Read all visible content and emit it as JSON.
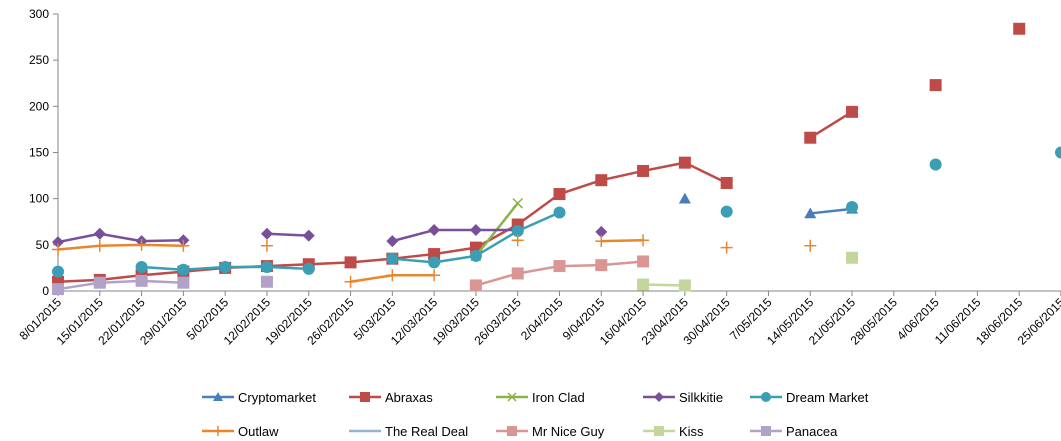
{
  "chart_data": {
    "type": "line",
    "ylim": [
      0,
      300
    ],
    "yticks": [
      0,
      50,
      100,
      150,
      200,
      250,
      300
    ],
    "grid": false,
    "legend_position": "bottom",
    "categories": [
      "8/01/2015",
      "15/01/2015",
      "22/01/2015",
      "29/01/2015",
      "5/02/2015",
      "12/02/2015",
      "19/02/2015",
      "26/02/2015",
      "5/03/2015",
      "12/03/2015",
      "19/03/2015",
      "26/03/2015",
      "2/04/2015",
      "9/04/2015",
      "16/04/2015",
      "23/04/2015",
      "30/04/2015",
      "7/05/2015",
      "14/05/2015",
      "21/05/2015",
      "28/05/2015",
      "4/06/2015",
      "11/06/2015",
      "18/06/2015",
      "25/06/2015"
    ],
    "series": [
      {
        "name": "Cryptomarket",
        "color": "#4a7ebb",
        "marker": "triangle",
        "values": [
          null,
          null,
          null,
          null,
          null,
          null,
          null,
          null,
          null,
          null,
          null,
          null,
          null,
          null,
          null,
          100,
          null,
          null,
          84,
          89,
          null,
          null,
          null,
          null,
          null
        ]
      },
      {
        "name": "Abraxas",
        "color": "#be4b48",
        "marker": "square",
        "values": [
          10,
          12,
          17,
          21,
          25,
          27,
          29,
          31,
          35,
          40,
          47,
          72,
          105,
          120,
          130,
          139,
          117,
          null,
          166,
          194,
          null,
          223,
          null,
          284,
          null
        ]
      },
      {
        "name": "Iron Clad",
        "color": "#8cb24a",
        "marker": "x",
        "values": [
          null,
          null,
          null,
          null,
          null,
          null,
          null,
          null,
          null,
          null,
          38,
          95,
          null,
          null,
          null,
          null,
          null,
          null,
          null,
          null,
          null,
          null,
          null,
          null,
          null
        ]
      },
      {
        "name": "Silkkitie",
        "color": "#7a4f9a",
        "marker": "diamond",
        "values": [
          53,
          62,
          54,
          55,
          null,
          62,
          60,
          null,
          54,
          66,
          66,
          66,
          null,
          64,
          null,
          null,
          null,
          null,
          null,
          null,
          null,
          null,
          null,
          null,
          null
        ]
      },
      {
        "name": "Dream Market",
        "color": "#3a9fb5",
        "marker": "circle",
        "values": [
          21,
          null,
          26,
          23,
          26,
          26,
          24,
          null,
          35,
          31,
          38,
          65,
          85,
          null,
          null,
          null,
          86,
          null,
          null,
          91,
          null,
          137,
          null,
          null,
          150
        ]
      },
      {
        "name": "Outlaw",
        "color": "#e8862f",
        "marker": "plus",
        "values": [
          45,
          49,
          50,
          49,
          null,
          49,
          null,
          10,
          17,
          17,
          null,
          55,
          null,
          54,
          55,
          null,
          47,
          null,
          49,
          null,
          null,
          null,
          null,
          null,
          null
        ]
      },
      {
        "name": "The Real Deal",
        "color": "#95b3d7",
        "marker": "none",
        "values": [
          null,
          null,
          null,
          null,
          null,
          null,
          null,
          null,
          null,
          null,
          null,
          null,
          null,
          null,
          null,
          null,
          null,
          null,
          null,
          null,
          null,
          null,
          null,
          null,
          null
        ]
      },
      {
        "name": "Mr Nice Guy",
        "color": "#d99694",
        "marker": "square",
        "values": [
          null,
          null,
          null,
          null,
          null,
          null,
          null,
          null,
          null,
          null,
          6,
          19,
          27,
          28,
          32,
          null,
          null,
          null,
          null,
          null,
          null,
          null,
          null,
          null,
          null
        ]
      },
      {
        "name": "Kiss",
        "color": "#c3d69b",
        "marker": "square",
        "values": [
          null,
          null,
          null,
          null,
          null,
          null,
          null,
          null,
          null,
          null,
          null,
          null,
          null,
          null,
          7,
          6,
          null,
          null,
          null,
          36,
          null,
          null,
          null,
          null,
          null
        ]
      },
      {
        "name": "Panacea",
        "color": "#b3a2c7",
        "marker": "square",
        "values": [
          2,
          9,
          11,
          9,
          null,
          10,
          null,
          null,
          null,
          null,
          null,
          null,
          null,
          null,
          null,
          null,
          null,
          null,
          null,
          null,
          null,
          null,
          null,
          null,
          null
        ]
      }
    ]
  }
}
